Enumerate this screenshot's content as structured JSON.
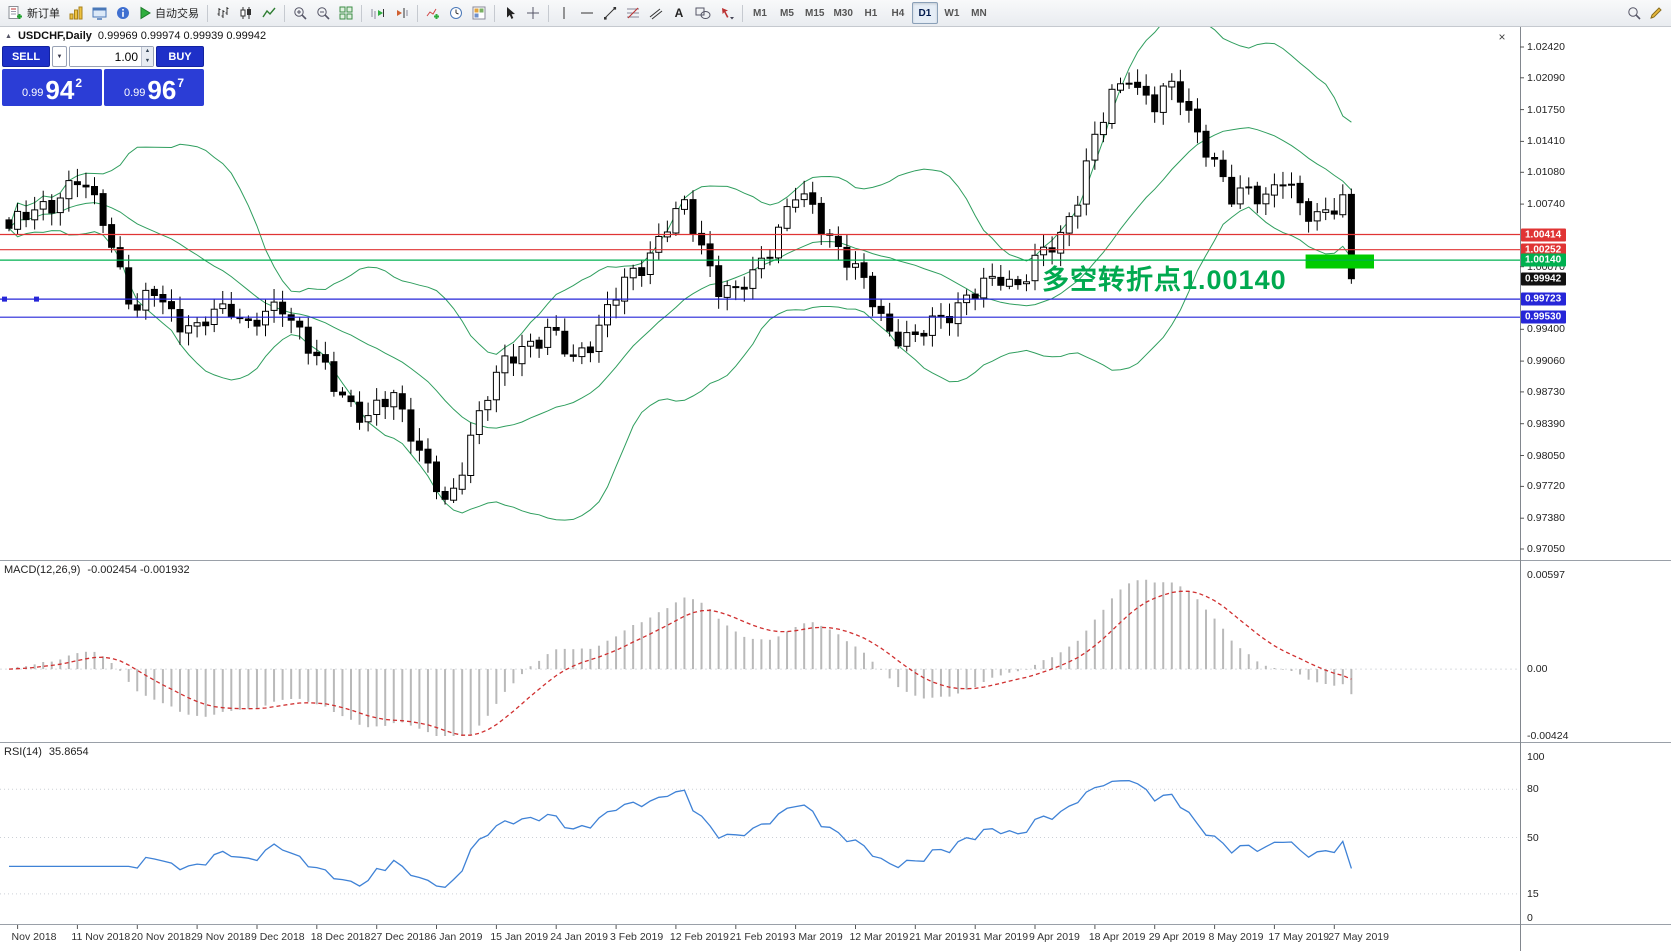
{
  "icons": {
    "close": "×",
    "collapse": "▲",
    "dropdown": "▼",
    "spinner_up": "▲",
    "spinner_down": "▼"
  },
  "toolbar": {
    "new_order_label": "新订单",
    "autotrading_label": "自动交易",
    "text_tool_label": "A",
    "timeframes": [
      "M1",
      "M5",
      "M15",
      "M30",
      "H1",
      "H4",
      "D1",
      "W1",
      "MN"
    ],
    "active_timeframe": "D1"
  },
  "chart": {
    "symbol_period": "USDCHF,Daily",
    "ohlc_text": "0.99969 0.99974 0.99939 0.99942"
  },
  "trade_panel": {
    "sell_label": "SELL",
    "buy_label": "BUY",
    "volume": "1.00",
    "sell_price": {
      "big_figure": "0.99",
      "points": "94",
      "pip": "2"
    },
    "buy_price": {
      "big_figure": "0.99",
      "points": "96",
      "pip": "7"
    }
  },
  "chart_data": [
    {
      "type": "candlestick",
      "title": "USDCHF,Daily",
      "ohlc_display": {
        "open": "0.99969",
        "high": "0.99974",
        "low": "0.99939",
        "close": "0.99942"
      },
      "n_candles": 158,
      "candles_between_labels": 7,
      "x_tick_labels": [
        "Nov 2018",
        "11 Nov 2018",
        "20 Nov 2018",
        "29 Nov 2018",
        "9 Dec 2018",
        "18 Dec 2018",
        "27 Dec 2018",
        "6 Jan 2019",
        "15 Jan 2019",
        "24 Jan 2019",
        "3 Feb 2019",
        "12 Feb 2019",
        "21 Feb 2019",
        "3 Mar 2019",
        "12 Mar 2019",
        "21 Mar 2019",
        "31 Mar 2019",
        "9 Apr 2019",
        "18 Apr 2019",
        "29 Apr 2019",
        "8 May 2019",
        "17 May 2019",
        "27 May 2019"
      ],
      "ylim": [
        0.9705,
        1.0242
      ],
      "y_tick_labels": [
        "1.02420",
        "1.02090",
        "1.01750",
        "1.01410",
        "1.01080",
        "1.00740",
        "1.00070",
        "0.99400",
        "0.99060",
        "0.98730",
        "0.98390",
        "0.98050",
        "0.97720",
        "0.97380",
        "0.97050"
      ],
      "close_path_anchors": [
        [
          0,
          1.0048
        ],
        [
          3,
          1.0065
        ],
        [
          8,
          1.0098
        ],
        [
          11,
          1.0062
        ],
        [
          14,
          0.9975
        ],
        [
          15,
          0.9955
        ],
        [
          17,
          0.9982
        ],
        [
          20,
          0.995
        ],
        [
          22,
          0.9935
        ],
        [
          24,
          0.9958
        ],
        [
          26,
          0.9968
        ],
        [
          28,
          0.9942
        ],
        [
          30,
          0.9952
        ],
        [
          32,
          0.9968
        ],
        [
          34,
          0.994
        ],
        [
          36,
          0.9905
        ],
        [
          38,
          0.988
        ],
        [
          40,
          0.9862
        ],
        [
          42,
          0.9845
        ],
        [
          45,
          0.9868
        ],
        [
          47,
          0.9835
        ],
        [
          49,
          0.979
        ],
        [
          51,
          0.975
        ],
        [
          52,
          0.9762
        ],
        [
          54,
          0.983
        ],
        [
          56,
          0.9872
        ],
        [
          58,
          0.99
        ],
        [
          60,
          0.9922
        ],
        [
          63,
          0.9938
        ],
        [
          64,
          0.9928
        ],
        [
          66,
          0.9906
        ],
        [
          68,
          0.993
        ],
        [
          71,
          0.9975
        ],
        [
          74,
          1.001
        ],
        [
          77,
          1.0052
        ],
        [
          79,
          1.0068
        ],
        [
          81,
          1.003
        ],
        [
          83,
          0.9988
        ],
        [
          85,
          0.9975
        ],
        [
          87,
          0.9998
        ],
        [
          89,
          1.0032
        ],
        [
          92,
          1.0082
        ],
        [
          94,
          1.0068
        ],
        [
          96,
          1.0042
        ],
        [
          99,
          1.0
        ],
        [
          101,
          0.9972
        ],
        [
          103,
          0.994
        ],
        [
          106,
          0.9925
        ],
        [
          108,
          0.9948
        ],
        [
          110,
          0.9962
        ],
        [
          113,
          0.9976
        ],
        [
          116,
          1.0
        ],
        [
          118,
          0.9988
        ],
        [
          120,
          1.0008
        ],
        [
          123,
          1.0042
        ],
        [
          125,
          1.0085
        ],
        [
          127,
          1.014
        ],
        [
          129,
          1.019
        ],
        [
          131,
          1.0218
        ],
        [
          132,
          1.0196
        ],
        [
          134,
          1.0176
        ],
        [
          136,
          1.0202
        ],
        [
          137,
          1.0196
        ],
        [
          139,
          1.0152
        ],
        [
          141,
          1.011
        ],
        [
          143,
          1.0082
        ],
        [
          145,
          1.0096
        ],
        [
          147,
          1.0076
        ],
        [
          149,
          1.0098
        ],
        [
          151,
          1.0078
        ],
        [
          153,
          1.0062
        ],
        [
          155,
          1.0066
        ],
        [
          156,
          1.0072
        ],
        [
          157,
          0.99942
        ]
      ],
      "overlays": {
        "bollinger": {
          "period": 20,
          "deviation": 2,
          "color": "#2f9e5e"
        },
        "horizontal_lines": [
          {
            "price": 1.00414,
            "label": "1.00414",
            "color": "#e03434"
          },
          {
            "price": 1.00252,
            "label": "1.00252",
            "color": "#e03434"
          },
          {
            "price": 1.0014,
            "label": "1.00140",
            "color": "#00b050"
          },
          {
            "price": 0.99723,
            "label": "0.99723",
            "color": "#2626d8",
            "selected": true
          },
          {
            "price": 0.9953,
            "label": "0.99530",
            "color": "#2626d8"
          }
        ],
        "current_price": {
          "value": 0.99942,
          "label": "0.99942",
          "bg": "#111111"
        },
        "highlight_rect": {
          "price_top": 1.002,
          "price_bottom": 1.0005,
          "from_candle": 152,
          "to_candle": 160,
          "color": "#00cc00"
        },
        "annotation": {
          "text": "多空转折点1.00140",
          "color": "#00a94f"
        }
      }
    },
    {
      "type": "macd",
      "label": "MACD(12,26,9)",
      "values_text": "-0.002454 -0.001932",
      "main_value": -0.002454,
      "signal_value": -0.001932,
      "params": {
        "fast": 12,
        "slow": 26,
        "signal": 9
      },
      "ylim": [
        -0.00424,
        0.00597
      ],
      "y_axis_labels": [
        "0.00597",
        "0.00",
        "-0.00424"
      ],
      "histogram_color": "#b9b9b9",
      "signal_color": "#d03030"
    },
    {
      "type": "rsi",
      "label": "RSI(14)",
      "value_text": "35.8654",
      "value": 35.8654,
      "period": 14,
      "ylim": [
        0,
        100
      ],
      "y_axis_labels": [
        "100",
        "80",
        "50",
        "15",
        "0"
      ],
      "levels": [
        80,
        50,
        15
      ],
      "line_color": "#3f82d6"
    }
  ]
}
